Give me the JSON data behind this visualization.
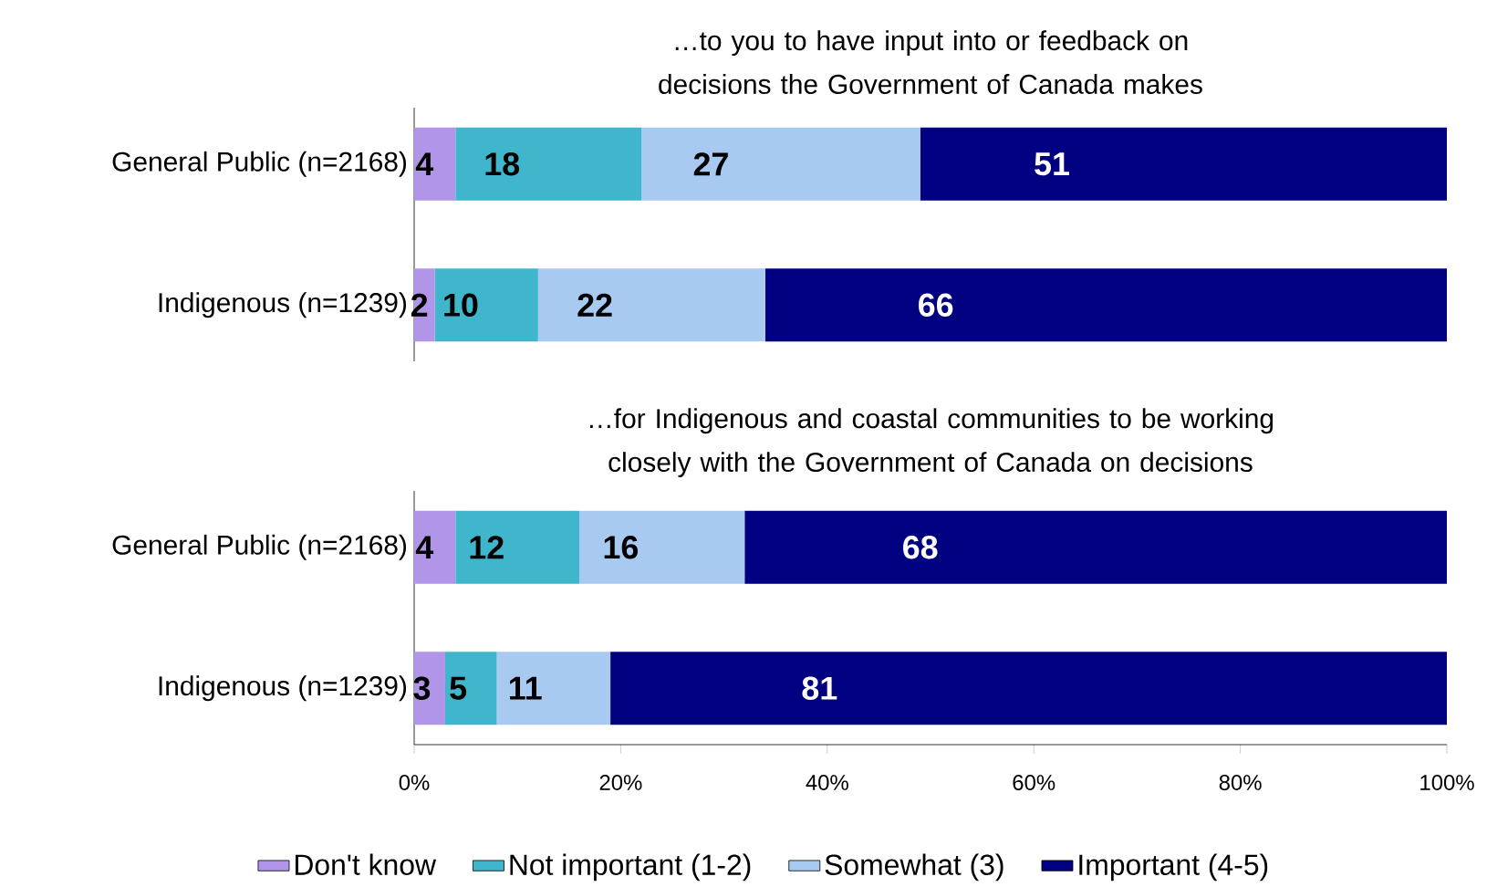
{
  "chart_data": [
    {
      "type": "bar",
      "orientation": "horizontal",
      "stacked": true,
      "data_labels": true,
      "tick_labels": "y",
      "title": "…to you to have input into or feedback on decisions the Government of Canada makes",
      "categories": [
        "General Public (n=2168)",
        "Indigenous (n=1239)"
      ],
      "xlim": [
        0,
        100
      ],
      "series": [
        {
          "color": "#b095e8",
          "values": [
            4,
            2
          ]
        },
        {
          "color": "#40b6cc",
          "values": [
            18,
            10
          ]
        },
        {
          "color": "#a8c9f0",
          "values": [
            27,
            22
          ]
        },
        {
          "color": "#000080",
          "values": [
            51,
            66
          ]
        }
      ]
    },
    {
      "type": "bar",
      "orientation": "horizontal",
      "stacked": true,
      "data_labels": true,
      "legend": "bottom",
      "title": "…for Indigenous and coastal communities to be working closely with the Government of Canada on decisions",
      "categories": [
        "General Public (n=2168)",
        "Indigenous (n=1239)"
      ],
      "xlim": [
        0,
        100
      ],
      "xticks": [
        {
          "value": 0,
          "label": "0%"
        },
        {
          "value": 20,
          "label": "20%"
        },
        {
          "value": 40,
          "label": "40%"
        },
        {
          "value": 60,
          "label": "60%"
        },
        {
          "value": 80,
          "label": "80%"
        },
        {
          "value": 100,
          "label": "100%"
        }
      ],
      "series": [
        {
          "name": "Don't know",
          "color": "#b095e8",
          "values": [
            4,
            3
          ]
        },
        {
          "name": "Not important (1-2)",
          "color": "#40b6cc",
          "values": [
            12,
            5
          ]
        },
        {
          "name": "Somewhat (3)",
          "color": "#a8c9f0",
          "values": [
            16,
            11
          ]
        },
        {
          "name": "Important (4-5)",
          "color": "#000080",
          "values": [
            68,
            81
          ]
        }
      ]
    }
  ]
}
